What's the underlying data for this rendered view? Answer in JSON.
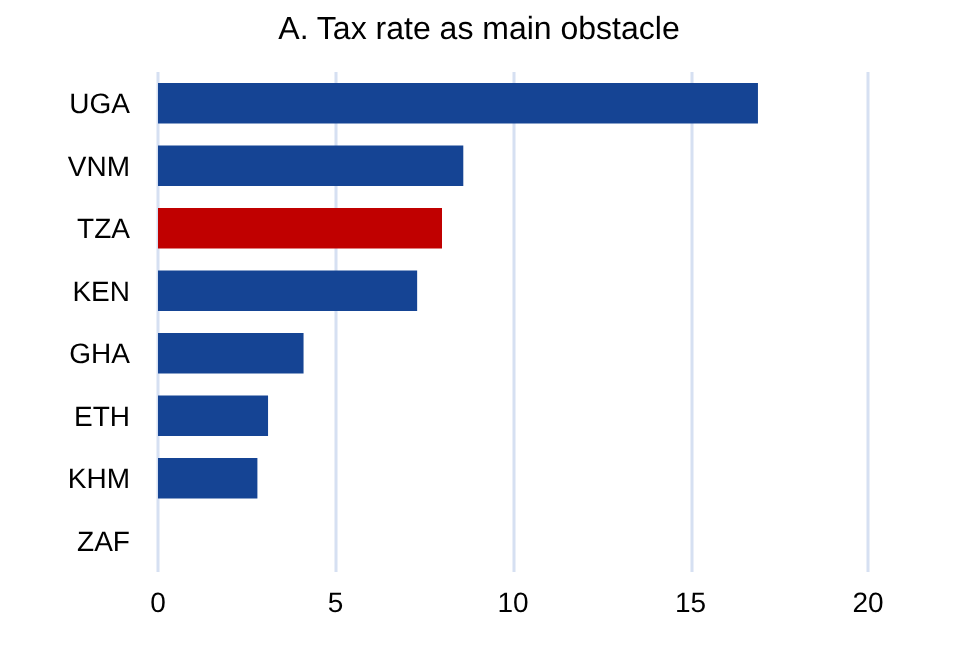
{
  "chart_data": {
    "type": "bar",
    "orientation": "horizontal",
    "title": "A. Tax rate as main obstacle",
    "categories": [
      "UGA",
      "VNM",
      "TZA",
      "KEN",
      "GHA",
      "ETH",
      "KHM",
      "ZAF"
    ],
    "values": [
      16.9,
      8.6,
      8.0,
      7.3,
      4.1,
      3.1,
      2.8,
      0
    ],
    "colors": [
      "#154494",
      "#154494",
      "#c00000",
      "#154494",
      "#154494",
      "#154494",
      "#154494",
      "#154494"
    ],
    "xlim": [
      0,
      20
    ],
    "xticks": [
      0,
      5,
      10,
      15,
      20
    ],
    "grid": "x"
  }
}
